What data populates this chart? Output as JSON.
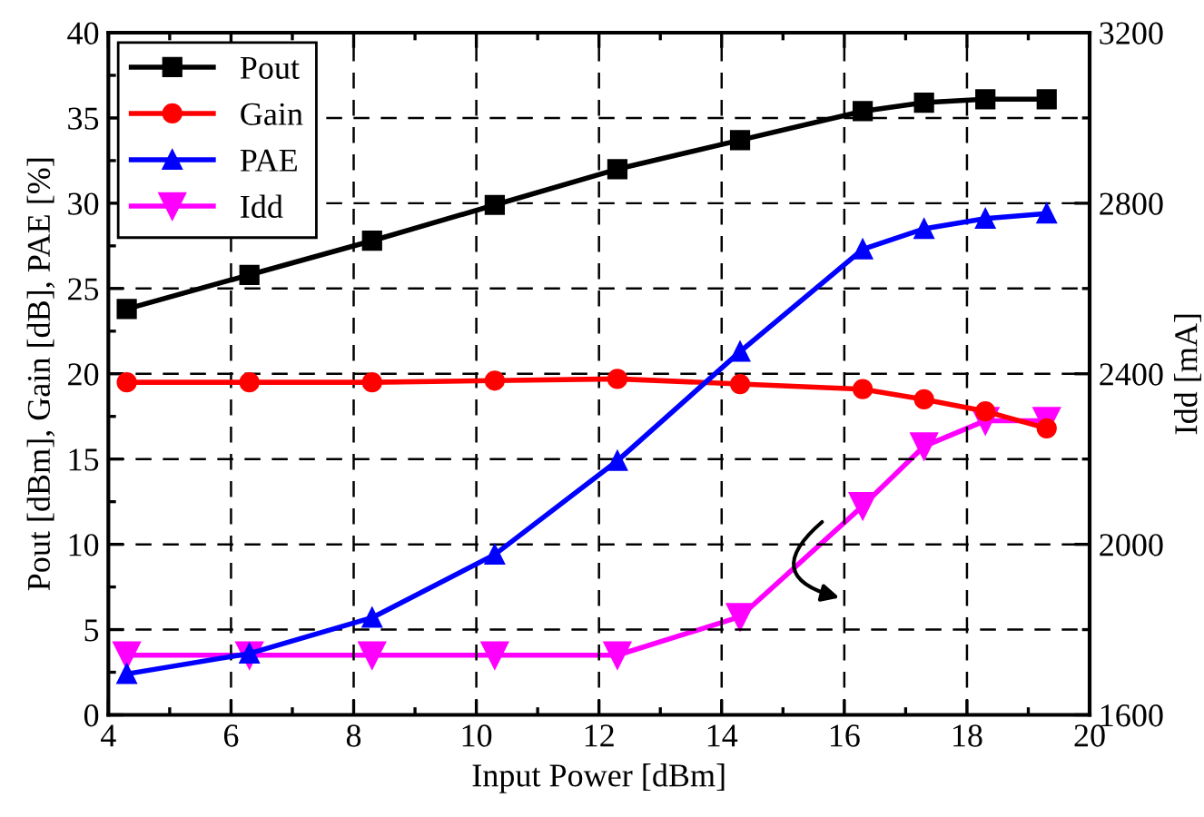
{
  "chart_data": {
    "type": "line",
    "xlabel": "Input Power [dBm]",
    "ylabel": "Pout [dBm], Gain [dB], PAE [%]",
    "y2label": "Idd [mA]",
    "x": [
      4.3,
      6.3,
      8.3,
      10.3,
      12.3,
      14.3,
      16.3,
      17.3,
      18.3,
      19.3
    ],
    "series": [
      {
        "name": "Pout",
        "color": "#000000",
        "marker": "square",
        "values": [
          23.8,
          25.8,
          27.8,
          29.9,
          32.0,
          33.7,
          35.4,
          35.9,
          36.1,
          36.1
        ]
      },
      {
        "name": "Gain",
        "color": "#ff0000",
        "marker": "circle",
        "values": [
          19.5,
          19.5,
          19.5,
          19.6,
          19.7,
          19.4,
          19.1,
          18.5,
          17.8,
          16.8
        ]
      },
      {
        "name": "PAE",
        "color": "#0000ff",
        "marker": "triangle",
        "values": [
          2.4,
          3.6,
          5.7,
          9.4,
          14.9,
          21.3,
          27.3,
          28.5,
          29.1,
          29.4
        ]
      },
      {
        "name": "Idd",
        "color": "#ff00ff",
        "marker": "triangle_down",
        "axis": "y2",
        "values": [
          1740,
          1740,
          1740,
          1740,
          1740,
          1830,
          2090,
          2230,
          2290,
          2290
        ]
      }
    ],
    "xlim": [
      4,
      20
    ],
    "xticks": [
      4,
      6,
      8,
      10,
      12,
      14,
      16,
      18,
      20
    ],
    "ylim": [
      0,
      40
    ],
    "yticks": [
      0,
      5,
      10,
      15,
      20,
      25,
      30,
      35,
      40
    ],
    "y2lim": [
      1600,
      3200
    ],
    "y2ticks": [
      1600,
      2000,
      2400,
      2800,
      3200
    ],
    "grid": true,
    "legend": "top left",
    "line_style": "solid"
  }
}
